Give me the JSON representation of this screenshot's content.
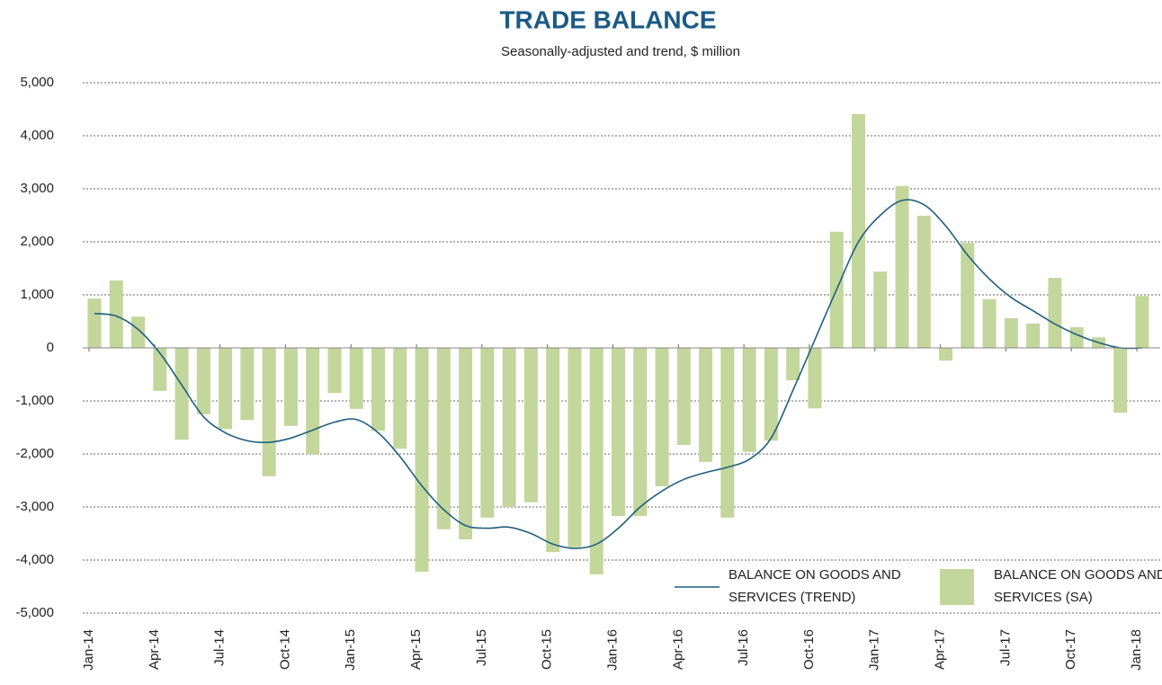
{
  "chart_data": {
    "type": "bar",
    "title": "TRADE BALANCE",
    "subtitle": "Seasonally-adjusted and trend, $ million",
    "categories": [
      "Jan-14",
      null,
      null,
      "Apr-14",
      null,
      null,
      "Jul-14",
      null,
      null,
      "Oct-14",
      null,
      null,
      "Jan-15",
      null,
      null,
      "Apr-15",
      null,
      null,
      "Jul-15",
      null,
      null,
      "Oct-15",
      null,
      null,
      "Jan-16",
      null,
      null,
      "Apr-16",
      null,
      null,
      "Jul-16",
      null,
      null,
      "Oct-16",
      null,
      null,
      "Jan-17",
      null,
      null,
      "Apr-17",
      null,
      null,
      "Jul-17",
      null,
      null,
      "Oct-17",
      null,
      null,
      "Jan-18"
    ],
    "series": [
      {
        "name": "BALANCE ON GOODS AND SERVICES (TREND)",
        "type": "line",
        "color": "#1f5f7f",
        "values": [
          650,
          600,
          350,
          -100,
          -700,
          -1300,
          -1600,
          -1750,
          -1780,
          -1700,
          -1550,
          -1400,
          -1350,
          -1600,
          -2050,
          -2600,
          -3050,
          -3350,
          -3400,
          -3380,
          -3500,
          -3700,
          -3780,
          -3700,
          -3400,
          -3000,
          -2700,
          -2480,
          -2350,
          -2250,
          -2100,
          -1700,
          -800,
          150,
          1100,
          2000,
          2500,
          2780,
          2700,
          2300,
          1750,
          1300,
          950,
          700,
          450,
          250,
          100,
          0,
          0
        ]
      },
      {
        "name": "BALANCE ON GOODS AND SERVICES (SA)",
        "type": "bar",
        "color": "#c3d69b",
        "values": [
          930,
          1270,
          590,
          -810,
          -1730,
          -1250,
          -1530,
          -1360,
          -2420,
          -1470,
          -2000,
          -850,
          -1150,
          -1560,
          -1900,
          -4220,
          -3420,
          -3610,
          -3200,
          -3000,
          -2910,
          -3850,
          -3760,
          -4270,
          -3170,
          -3170,
          -2610,
          -1830,
          -2150,
          -3200,
          -1960,
          -1750,
          -610,
          -1140,
          2190,
          4410,
          1440,
          3050,
          2490,
          -240,
          1980,
          920,
          560,
          460,
          1320,
          390,
          200,
          -1220,
          980
        ]
      }
    ],
    "ylim": [
      -5000,
      5000
    ],
    "yticks": [
      {
        "value": -5000,
        "label": "-5,000"
      },
      {
        "value": -4000,
        "label": "-4,000"
      },
      {
        "value": -3000,
        "label": "-3,000"
      },
      {
        "value": -2000,
        "label": "-2,000"
      },
      {
        "value": -1000,
        "label": "-1,000"
      },
      0,
      {
        "value": 1000,
        "label": "1,000"
      },
      {
        "value": 2000,
        "label": "2,000"
      },
      {
        "value": 3000,
        "label": "3,000"
      },
      {
        "value": 4000,
        "label": "4,000"
      },
      {
        "value": 5000,
        "label": "5,000"
      }
    ],
    "grid": true,
    "legend": "lower right"
  }
}
